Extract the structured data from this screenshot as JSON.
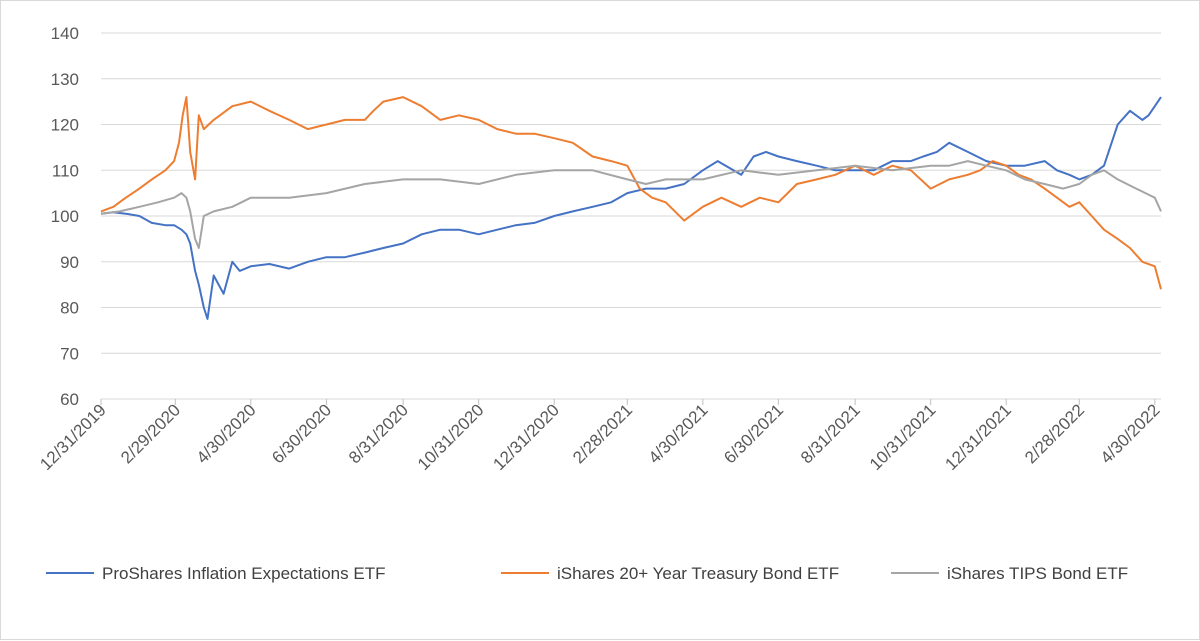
{
  "chart_data": {
    "type": "line",
    "title": "",
    "xlabel": "",
    "ylabel": "",
    "ylim": [
      60,
      140
    ],
    "yticks": [
      60,
      70,
      80,
      90,
      100,
      110,
      120,
      130,
      140
    ],
    "xlim": [
      "2019-12-31",
      "2022-05-05"
    ],
    "x_tick_labels": [
      "12/31/2019",
      "2/29/2020",
      "4/30/2020",
      "6/30/2020",
      "8/31/2020",
      "10/31/2020",
      "12/31/2020",
      "2/28/2021",
      "4/30/2021",
      "6/30/2021",
      "8/31/2021",
      "10/31/2021",
      "12/31/2021",
      "2/28/2022",
      "4/30/2022"
    ],
    "x_tick_dates": [
      "2019-12-31",
      "2020-02-29",
      "2020-04-30",
      "2020-06-30",
      "2020-08-31",
      "2020-10-31",
      "2020-12-31",
      "2021-02-28",
      "2021-04-30",
      "2021-06-30",
      "2021-08-31",
      "2021-10-31",
      "2021-12-31",
      "2022-02-28",
      "2022-04-30"
    ],
    "grid": true,
    "legend_position": "bottom",
    "series": [
      {
        "name": "ProShares Inflation Expectations ETF",
        "color": "#4472c4",
        "x": [
          "2019-12-31",
          "2020-01-10",
          "2020-01-20",
          "2020-01-31",
          "2020-02-10",
          "2020-02-21",
          "2020-02-28",
          "2020-03-05",
          "2020-03-09",
          "2020-03-12",
          "2020-03-16",
          "2020-03-19",
          "2020-03-23",
          "2020-03-26",
          "2020-03-31",
          "2020-04-08",
          "2020-04-15",
          "2020-04-21",
          "2020-04-30",
          "2020-05-15",
          "2020-05-31",
          "2020-06-15",
          "2020-06-30",
          "2020-07-15",
          "2020-07-31",
          "2020-08-15",
          "2020-08-31",
          "2020-09-15",
          "2020-09-30",
          "2020-10-15",
          "2020-10-31",
          "2020-11-15",
          "2020-11-30",
          "2020-12-15",
          "2020-12-31",
          "2021-01-15",
          "2021-01-31",
          "2021-02-15",
          "2021-02-28",
          "2021-03-15",
          "2021-03-31",
          "2021-04-15",
          "2021-04-30",
          "2021-05-12",
          "2021-05-31",
          "2021-06-10",
          "2021-06-20",
          "2021-06-30",
          "2021-07-15",
          "2021-07-31",
          "2021-08-15",
          "2021-08-31",
          "2021-09-15",
          "2021-09-30",
          "2021-10-15",
          "2021-10-25",
          "2021-11-05",
          "2021-11-15",
          "2021-11-30",
          "2021-12-15",
          "2021-12-31",
          "2022-01-15",
          "2022-01-31",
          "2022-02-10",
          "2022-02-20",
          "2022-02-28",
          "2022-03-10",
          "2022-03-20",
          "2022-03-31",
          "2022-04-10",
          "2022-04-20",
          "2022-04-25",
          "2022-04-30",
          "2022-05-05"
        ],
        "y": [
          100.5,
          100.8,
          100.5,
          100,
          98.5,
          98,
          98,
          97,
          96,
          94,
          88,
          85,
          80,
          77.5,
          87,
          83,
          90,
          88,
          89,
          89.5,
          88.5,
          90,
          91,
          91,
          92,
          93,
          94,
          96,
          97,
          97,
          96,
          97,
          98,
          98.5,
          100,
          101,
          102,
          103,
          105,
          106,
          106,
          107,
          110,
          112,
          109,
          113,
          114,
          113,
          112,
          111,
          110,
          110,
          110,
          112,
          112,
          113,
          114,
          116,
          114,
          112,
          111,
          111,
          112,
          110,
          109,
          108,
          109,
          111,
          120,
          123,
          121,
          122,
          124,
          126
        ]
      },
      {
        "name": "iShares 20+ Year Treasury Bond ETF",
        "color": "#ed7d31",
        "x": [
          "2019-12-31",
          "2020-01-10",
          "2020-01-20",
          "2020-01-31",
          "2020-02-10",
          "2020-02-21",
          "2020-02-28",
          "2020-03-03",
          "2020-03-06",
          "2020-03-09",
          "2020-03-12",
          "2020-03-16",
          "2020-03-19",
          "2020-03-23",
          "2020-03-31",
          "2020-04-15",
          "2020-04-30",
          "2020-05-15",
          "2020-05-31",
          "2020-06-15",
          "2020-06-30",
          "2020-07-15",
          "2020-07-31",
          "2020-08-07",
          "2020-08-15",
          "2020-08-31",
          "2020-09-15",
          "2020-09-30",
          "2020-10-15",
          "2020-10-31",
          "2020-11-15",
          "2020-11-30",
          "2020-12-15",
          "2020-12-31",
          "2021-01-15",
          "2021-01-31",
          "2021-02-15",
          "2021-02-28",
          "2021-03-10",
          "2021-03-20",
          "2021-03-31",
          "2021-04-15",
          "2021-04-30",
          "2021-05-15",
          "2021-05-31",
          "2021-06-15",
          "2021-06-30",
          "2021-07-15",
          "2021-07-31",
          "2021-08-15",
          "2021-08-31",
          "2021-09-15",
          "2021-09-30",
          "2021-10-15",
          "2021-10-31",
          "2021-11-15",
          "2021-11-30",
          "2021-12-10",
          "2021-12-20",
          "2021-12-31",
          "2022-01-10",
          "2022-01-20",
          "2022-01-31",
          "2022-02-10",
          "2022-02-20",
          "2022-02-28",
          "2022-03-10",
          "2022-03-20",
          "2022-03-31",
          "2022-04-10",
          "2022-04-20",
          "2022-04-30",
          "2022-05-05"
        ],
        "y": [
          101,
          102,
          104,
          106,
          108,
          110,
          112,
          116,
          122,
          126,
          114,
          108,
          122,
          119,
          121,
          124,
          125,
          123,
          121,
          119,
          120,
          121,
          121,
          123,
          125,
          126,
          124,
          121,
          122,
          121,
          119,
          118,
          118,
          117,
          116,
          113,
          112,
          111,
          106,
          104,
          103,
          99,
          102,
          104,
          102,
          104,
          103,
          107,
          108,
          109,
          111,
          109,
          111,
          110,
          106,
          108,
          109,
          110,
          112,
          111,
          109,
          108,
          106,
          104,
          102,
          103,
          100,
          97,
          95,
          93,
          90,
          89,
          84
        ]
      },
      {
        "name": "iShares TIPS Bond ETF",
        "color": "#a5a5a5",
        "x": [
          "2019-12-31",
          "2020-01-15",
          "2020-01-31",
          "2020-02-15",
          "2020-02-28",
          "2020-03-05",
          "2020-03-09",
          "2020-03-12",
          "2020-03-16",
          "2020-03-19",
          "2020-03-23",
          "2020-03-31",
          "2020-04-15",
          "2020-04-30",
          "2020-05-31",
          "2020-06-30",
          "2020-07-31",
          "2020-08-31",
          "2020-09-30",
          "2020-10-31",
          "2020-11-30",
          "2020-12-31",
          "2021-01-31",
          "2021-02-28",
          "2021-03-15",
          "2021-03-31",
          "2021-04-30",
          "2021-05-31",
          "2021-06-30",
          "2021-07-31",
          "2021-08-31",
          "2021-09-30",
          "2021-10-31",
          "2021-11-15",
          "2021-11-30",
          "2021-12-15",
          "2021-12-31",
          "2022-01-15",
          "2022-01-31",
          "2022-02-15",
          "2022-02-28",
          "2022-03-10",
          "2022-03-20",
          "2022-03-31",
          "2022-04-15",
          "2022-04-30",
          "2022-05-05"
        ],
        "y": [
          100.5,
          101,
          102,
          103,
          104,
          105,
          104,
          101,
          95,
          93,
          100,
          101,
          102,
          104,
          104,
          105,
          107,
          108,
          108,
          107,
          109,
          110,
          110,
          108,
          107,
          108,
          108,
          110,
          109,
          110,
          111,
          110,
          111,
          111,
          112,
          111,
          110,
          108,
          107,
          106,
          107,
          109,
          110,
          108,
          106,
          104,
          101
        ]
      }
    ]
  }
}
